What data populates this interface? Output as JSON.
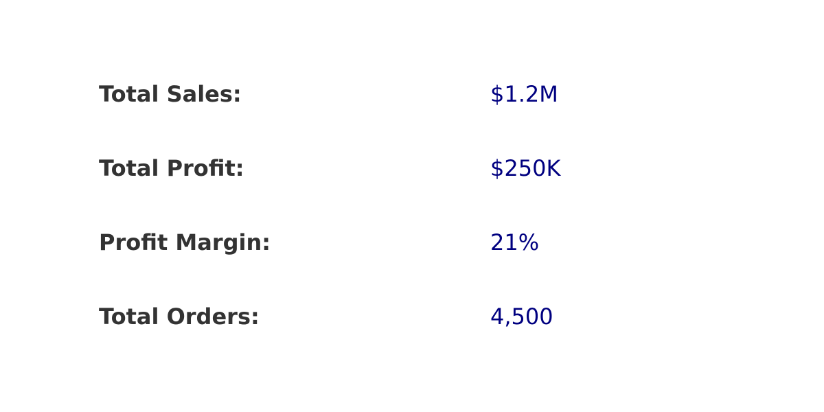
{
  "colors": {
    "background": "#ffffff",
    "label": "#333333",
    "value": "#000080"
  },
  "chart_data": {
    "type": "table",
    "title": "",
    "rows": [
      {
        "label": "Total Sales:",
        "value": "$1.2M"
      },
      {
        "label": "Total Profit:",
        "value": "$250K"
      },
      {
        "label": "Profit Margin:",
        "value": "21%"
      },
      {
        "label": "Total Orders:",
        "value": "4,500"
      }
    ]
  }
}
